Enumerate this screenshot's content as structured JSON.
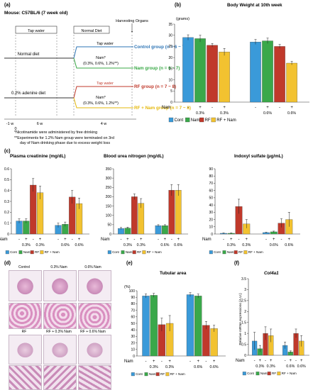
{
  "panel_a": {
    "tag": "(a)",
    "mouse": "Mouse: C57BL/6 (7 week old)",
    "tap_box": "Tap water",
    "normal_box": "Normal Diet",
    "harvest": "Harvesting Organs",
    "normal_diet": "Normal diet",
    "adenine_diet": "0.2% adenine diet",
    "tap_water_1": "Tap water",
    "tap_water_2": "Tap water",
    "nam_line_1": "Nam*",
    "nam_line_1b": "(0.3%, 0.6%, 1.2%**)",
    "nam_line_2": "Nam*",
    "nam_line_2b": "(0.3%, 0.6%, 1.2%**)",
    "groups": [
      {
        "label": "Control group",
        "n": "(n = 6 ~ 7)",
        "color": "#2e75b6"
      },
      {
        "label": "Nam group",
        "n": "(n = 6 ~ 7)",
        "color": "#38a845"
      },
      {
        "label": "RF group",
        "n": "(n = 7 ~ 8)",
        "color": "#c0392b"
      },
      {
        "label": "RF + Nam group",
        "n": "(n = 7 ~ 8)",
        "color": "#e5b80b"
      }
    ],
    "timeline": [
      "-1 w",
      "0",
      "6 w",
      "4 w"
    ],
    "note_1": "*Nicotinamide were administered by free drinking",
    "note_2": "**Experiments for 1.2% Nam group were terminated on 3rd",
    "note_3": "day of Nam drinking phase due to excess weight loss"
  },
  "colors": {
    "cont": "#3a9ad9",
    "nam": "#3aa84a",
    "rf": "#c0392b",
    "rfnam": "#f2c230"
  },
  "legend": [
    "Cont",
    "Nam",
    "RF",
    "RF + Nam"
  ],
  "chart_data": [
    {
      "panel": "(b)",
      "type": "bar",
      "title": "Body Weight at 10th week",
      "ylabel": "(grams)",
      "ylim": [
        0,
        35
      ],
      "yticks": [
        0,
        5,
        10,
        15,
        20,
        25,
        30,
        35
      ],
      "groups": [
        {
          "nam_signs": [
            "-",
            "+",
            "-",
            "+"
          ],
          "nam_dose": "0.3%",
          "values": [
            29,
            28.5,
            25.5,
            22.5
          ],
          "errors": [
            1.2,
            1.5,
            0.8,
            1.6
          ]
        },
        {
          "nam_signs": [
            "-",
            "+",
            "-",
            "+"
          ],
          "nam_dose": "0.6%",
          "values": [
            27,
            27.5,
            25,
            17.5
          ],
          "errors": [
            1.1,
            1.2,
            0.9,
            0.8
          ]
        }
      ]
    },
    {
      "panel": "(c)",
      "type": "bar",
      "title": "Plasma creatinine (mg/dL)",
      "ylim": [
        0,
        0.6
      ],
      "yticks": [
        0,
        0.1,
        0.2,
        0.3,
        0.4,
        0.5,
        0.6
      ],
      "groups": [
        {
          "nam_signs": [
            "-",
            "+",
            "-",
            "+"
          ],
          "nam_dose": "0.3%",
          "values": [
            0.12,
            0.12,
            0.45,
            0.38
          ],
          "errors": [
            0.02,
            0.02,
            0.06,
            0.06
          ]
        },
        {
          "nam_signs": [
            "-",
            "+",
            "-",
            "+"
          ],
          "nam_dose": "0.6%",
          "values": [
            0.08,
            0.09,
            0.34,
            0.28
          ],
          "errors": [
            0.02,
            0.02,
            0.06,
            0.05
          ]
        }
      ]
    },
    {
      "panel": "(c)",
      "type": "bar",
      "title": "Blood urea nitrogen (mg/dL)",
      "ylim": [
        0,
        350
      ],
      "yticks": [
        0,
        50,
        100,
        150,
        200,
        250,
        300,
        350
      ],
      "groups": [
        {
          "nam_signs": [
            "-",
            "+",
            "-",
            "+"
          ],
          "nam_dose": "0.3%",
          "values": [
            30,
            32,
            200,
            165
          ],
          "errors": [
            5,
            5,
            15,
            25
          ]
        },
        {
          "nam_signs": [
            "-",
            "+",
            "-",
            "+"
          ],
          "nam_dose": "0.6%",
          "values": [
            45,
            45,
            235,
            235
          ],
          "errors": [
            5,
            5,
            30,
            30
          ]
        }
      ]
    },
    {
      "panel": "(c)",
      "type": "bar",
      "title": "Indoxyl sulfate (µg/mL)",
      "ylim": [
        0,
        90
      ],
      "yticks": [
        0,
        10,
        20,
        30,
        40,
        50,
        60,
        70,
        80,
        90
      ],
      "groups": [
        {
          "nam_signs": [
            "-",
            "+",
            "-",
            "+"
          ],
          "nam_dose": "0.3%",
          "values": [
            1,
            1,
            38,
            14
          ],
          "errors": [
            0.5,
            0.5,
            10,
            6
          ]
        },
        {
          "nam_signs": [
            "-",
            "+",
            "-",
            "+"
          ],
          "nam_dose": "0.6%",
          "values": [
            2,
            3,
            15,
            20
          ],
          "errors": [
            0.5,
            1,
            6,
            10
          ]
        }
      ]
    },
    {
      "panel": "(e)",
      "type": "bar",
      "title": "Tubular area",
      "ylabel": "(%)",
      "ylim": [
        0,
        100
      ],
      "yticks": [
        0,
        10,
        20,
        30,
        40,
        50,
        60,
        70,
        80,
        90,
        100
      ],
      "groups": [
        {
          "nam_signs": [
            "-",
            "+",
            "-",
            "+"
          ],
          "nam_dose": "0.3%",
          "values": [
            92,
            93,
            48,
            50
          ],
          "errors": [
            3,
            3,
            10,
            12
          ]
        },
        {
          "nam_signs": [
            "-",
            "+",
            "-",
            "+"
          ],
          "nam_dose": "0.6%",
          "values": [
            94,
            92,
            47,
            42
          ],
          "errors": [
            3,
            3,
            6,
            5
          ]
        }
      ]
    },
    {
      "panel": "(f)",
      "type": "bar",
      "title": "Col4a1",
      "ylabel": "Relative mRNA expressions (A.U.)",
      "ylim": [
        0,
        3.5
      ],
      "yticks": [
        0,
        0.5,
        1,
        1.5,
        2,
        2.5,
        3,
        3.5
      ],
      "groups": [
        {
          "nam_signs": [
            "-",
            "+",
            "-",
            "+"
          ],
          "nam_dose": "0.3%",
          "values": [
            0.65,
            0.3,
            1.0,
            0.9
          ],
          "errors": [
            0.4,
            0.15,
            0.3,
            0.3
          ]
        },
        {
          "nam_signs": [
            "-",
            "+",
            "-",
            "+"
          ],
          "nam_dose": "0.6%",
          "values": [
            0.45,
            0.15,
            1.0,
            0.65
          ],
          "errors": [
            0.15,
            0.05,
            0.2,
            0.25
          ]
        }
      ]
    }
  ],
  "nam_label": "Nam",
  "panel_d": {
    "tag": "(d)",
    "top_labels": [
      "Control",
      "0.3% Nam",
      "0.6% Nam"
    ],
    "bottom_labels": [
      "RF",
      "RF + 0.3% Nam",
      "RF + 0.6% Nam"
    ]
  },
  "panel_c_tag": "(c)"
}
